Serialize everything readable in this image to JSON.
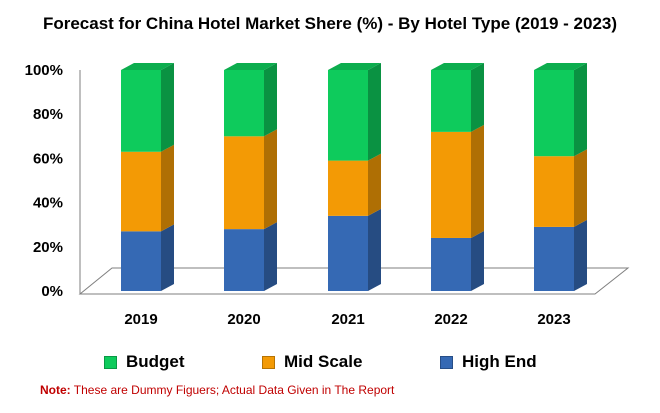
{
  "title": "Forecast for China Hotel Market Shere (%) - By Hotel Type (2019 - 2023)",
  "colors": {
    "budget": "#0ecb5c",
    "mid_scale": "#f39a05",
    "high_end": "#3569b4"
  },
  "chart_data": {
    "type": "bar",
    "stacked": true,
    "percent": true,
    "categories": [
      "2019",
      "2020",
      "2021",
      "2022",
      "2023"
    ],
    "series": [
      {
        "name": "High End",
        "values": [
          27,
          28,
          34,
          24,
          29
        ]
      },
      {
        "name": "Mid Scale",
        "values": [
          36,
          42,
          25,
          48,
          32
        ]
      },
      {
        "name": "Budget",
        "values": [
          37,
          30,
          41,
          28,
          39
        ]
      }
    ],
    "yticks": [
      "0%",
      "20%",
      "40%",
      "60%",
      "80%",
      "100%"
    ],
    "ylim": [
      0,
      100
    ],
    "grid": false,
    "legend_position": "bottom"
  },
  "legend": [
    {
      "label": "Budget",
      "series": "Budget"
    },
    {
      "label": "Mid Scale",
      "series": "Mid Scale"
    },
    {
      "label": "High End",
      "series": "High End"
    }
  ],
  "note": {
    "prefix": "Note:",
    "text": " These are Dummy Figuers; Actual Data Given in The Report"
  }
}
